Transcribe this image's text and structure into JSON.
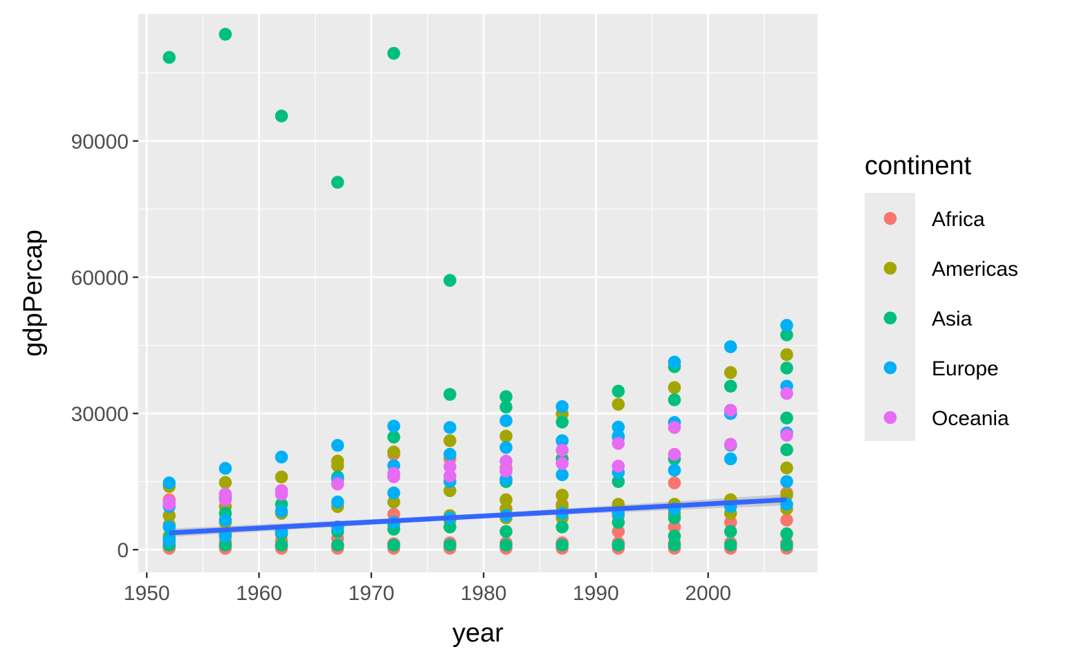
{
  "chart_data": {
    "type": "scatter",
    "title": "",
    "xlabel": "year",
    "ylabel": "gdpPercap",
    "xlim": [
      1949.25,
      2009.75
    ],
    "ylim": [
      -5000,
      118000
    ],
    "x_ticks": [
      1950,
      1960,
      1970,
      1980,
      1990,
      2000
    ],
    "x_tick_labels": [
      "1950",
      "1960",
      "1970",
      "1980",
      "1990",
      "2000"
    ],
    "y_ticks": [
      0,
      30000,
      60000,
      90000
    ],
    "y_tick_labels": [
      "0",
      "30000",
      "60000",
      "90000"
    ],
    "grid": true,
    "legend": {
      "title": "continent",
      "position": "right"
    },
    "series": [
      {
        "name": "Africa",
        "color": "#F8766D",
        "points": [
          [
            1952,
            300
          ],
          [
            1952,
            800
          ],
          [
            1952,
            1500
          ],
          [
            1952,
            11000
          ],
          [
            1957,
            300
          ],
          [
            1957,
            900
          ],
          [
            1957,
            1800
          ],
          [
            1957,
            12000
          ],
          [
            1962,
            300
          ],
          [
            1962,
            900
          ],
          [
            1962,
            2000
          ],
          [
            1967,
            300
          ],
          [
            1967,
            1000
          ],
          [
            1967,
            2500
          ],
          [
            1972,
            300
          ],
          [
            1972,
            1300
          ],
          [
            1972,
            7800
          ],
          [
            1972,
            21000
          ],
          [
            1977,
            300
          ],
          [
            1977,
            1500
          ],
          [
            1977,
            20000
          ],
          [
            1982,
            300
          ],
          [
            1982,
            1500
          ],
          [
            1982,
            18000
          ],
          [
            1987,
            300
          ],
          [
            1987,
            1500
          ],
          [
            1987,
            10000
          ],
          [
            1992,
            300
          ],
          [
            1992,
            1500
          ],
          [
            1992,
            4000
          ],
          [
            1997,
            300
          ],
          [
            1997,
            1500
          ],
          [
            1997,
            5000
          ],
          [
            1997,
            14700
          ],
          [
            2002,
            300
          ],
          [
            2002,
            1500
          ],
          [
            2002,
            6000
          ],
          [
            2007,
            300
          ],
          [
            2007,
            1500
          ],
          [
            2007,
            6500
          ],
          [
            2007,
            12500
          ]
        ]
      },
      {
        "name": "Americas",
        "color": "#A3A500",
        "points": [
          [
            1952,
            3000
          ],
          [
            1952,
            5500
          ],
          [
            1952,
            7500
          ],
          [
            1952,
            13900
          ],
          [
            1957,
            3500
          ],
          [
            1957,
            6000
          ],
          [
            1957,
            9500
          ],
          [
            1957,
            14800
          ],
          [
            1962,
            4000
          ],
          [
            1962,
            8000
          ],
          [
            1962,
            16000
          ],
          [
            1967,
            5000
          ],
          [
            1967,
            9500
          ],
          [
            1967,
            19500
          ],
          [
            1967,
            18500
          ],
          [
            1972,
            5500
          ],
          [
            1972,
            10500
          ],
          [
            1972,
            21500
          ],
          [
            1977,
            6500
          ],
          [
            1977,
            7500
          ],
          [
            1977,
            13000
          ],
          [
            1977,
            24000
          ],
          [
            1982,
            7000
          ],
          [
            1982,
            9000
          ],
          [
            1982,
            11000
          ],
          [
            1982,
            25000
          ],
          [
            1987,
            7000
          ],
          [
            1987,
            9500
          ],
          [
            1987,
            12000
          ],
          [
            1987,
            29900
          ],
          [
            1992,
            7500
          ],
          [
            1992,
            10000
          ],
          [
            1992,
            32000
          ],
          [
            1997,
            8000
          ],
          [
            1997,
            10000
          ],
          [
            1997,
            35700
          ],
          [
            2002,
            8000
          ],
          [
            2002,
            11000
          ],
          [
            2002,
            39000
          ],
          [
            2007,
            9000
          ],
          [
            2007,
            12000
          ],
          [
            2007,
            18000
          ],
          [
            2007,
            42950
          ]
        ]
      },
      {
        "name": "Asia",
        "color": "#00BF7D",
        "points": [
          [
            1952,
            108400
          ],
          [
            1952,
            1000
          ],
          [
            1952,
            2500
          ],
          [
            1957,
            113500
          ],
          [
            1957,
            1000
          ],
          [
            1957,
            3000
          ],
          [
            1957,
            8000
          ],
          [
            1962,
            95500
          ],
          [
            1962,
            1000
          ],
          [
            1962,
            3500
          ],
          [
            1962,
            10000
          ],
          [
            1967,
            80900
          ],
          [
            1967,
            1000
          ],
          [
            1967,
            4000
          ],
          [
            1967,
            16000
          ],
          [
            1972,
            109300
          ],
          [
            1972,
            1000
          ],
          [
            1972,
            4500
          ],
          [
            1972,
            24800
          ],
          [
            1977,
            59300
          ],
          [
            1977,
            34200
          ],
          [
            1977,
            1000
          ],
          [
            1977,
            5000
          ],
          [
            1982,
            33700
          ],
          [
            1982,
            31400
          ],
          [
            1982,
            1000
          ],
          [
            1982,
            4000
          ],
          [
            1982,
            15000
          ],
          [
            1987,
            28100
          ],
          [
            1987,
            1000
          ],
          [
            1987,
            5000
          ],
          [
            1987,
            20000
          ],
          [
            1992,
            34900
          ],
          [
            1992,
            24800
          ],
          [
            1992,
            1000
          ],
          [
            1992,
            6000
          ],
          [
            1992,
            15000
          ],
          [
            1997,
            40300
          ],
          [
            1997,
            33000
          ],
          [
            1997,
            1000
          ],
          [
            1997,
            3000
          ],
          [
            1997,
            7000
          ],
          [
            1997,
            20000
          ],
          [
            2002,
            36000
          ],
          [
            2002,
            30000
          ],
          [
            2002,
            1000
          ],
          [
            2002,
            4000
          ],
          [
            2002,
            23000
          ],
          [
            2007,
            47300
          ],
          [
            2007,
            40000
          ],
          [
            2007,
            29000
          ],
          [
            2007,
            1000
          ],
          [
            2007,
            3500
          ],
          [
            2007,
            22000
          ]
        ]
      },
      {
        "name": "Europe",
        "color": "#00B0F6",
        "points": [
          [
            1952,
            14700
          ],
          [
            1952,
            2000
          ],
          [
            1952,
            5000
          ],
          [
            1952,
            9500
          ],
          [
            1957,
            17900
          ],
          [
            1957,
            3000
          ],
          [
            1957,
            6500
          ],
          [
            1957,
            11500
          ],
          [
            1962,
            20400
          ],
          [
            1962,
            4000
          ],
          [
            1962,
            8500
          ],
          [
            1962,
            13000
          ],
          [
            1967,
            22970
          ],
          [
            1967,
            5000
          ],
          [
            1967,
            10500
          ],
          [
            1967,
            15500
          ],
          [
            1972,
            27200
          ],
          [
            1972,
            6000
          ],
          [
            1972,
            12500
          ],
          [
            1972,
            18500
          ],
          [
            1977,
            26900
          ],
          [
            1977,
            7000
          ],
          [
            1977,
            15000
          ],
          [
            1977,
            21000
          ],
          [
            1982,
            28400
          ],
          [
            1982,
            7500
          ],
          [
            1982,
            15500
          ],
          [
            1982,
            22500
          ],
          [
            1987,
            31500
          ],
          [
            1987,
            8000
          ],
          [
            1987,
            16500
          ],
          [
            1987,
            24000
          ],
          [
            1992,
            27000
          ],
          [
            1992,
            8000
          ],
          [
            1992,
            17000
          ],
          [
            1992,
            25000
          ],
          [
            1997,
            41300
          ],
          [
            1997,
            9000
          ],
          [
            1997,
            17500
          ],
          [
            1997,
            28000
          ],
          [
            2002,
            44700
          ],
          [
            2002,
            9500
          ],
          [
            2002,
            20000
          ],
          [
            2002,
            30000
          ],
          [
            2007,
            49400
          ],
          [
            2007,
            10000
          ],
          [
            2007,
            15000
          ],
          [
            2007,
            25700
          ],
          [
            2007,
            36000
          ]
        ]
      },
      {
        "name": "Oceania",
        "color": "#E76BF3",
        "points": [
          [
            1952,
            10040
          ],
          [
            1952,
            10560
          ],
          [
            1957,
            10950
          ],
          [
            1957,
            12250
          ],
          [
            1962,
            12220
          ],
          [
            1962,
            13000
          ],
          [
            1967,
            14450
          ],
          [
            1967,
            14500
          ],
          [
            1972,
            16050
          ],
          [
            1972,
            16800
          ],
          [
            1977,
            16200
          ],
          [
            1977,
            18300
          ],
          [
            1982,
            17300
          ],
          [
            1982,
            19500
          ],
          [
            1987,
            19000
          ],
          [
            1987,
            21900
          ],
          [
            1992,
            18400
          ],
          [
            1992,
            23400
          ],
          [
            1997,
            21000
          ],
          [
            1997,
            26900
          ],
          [
            2002,
            23200
          ],
          [
            2002,
            30700
          ],
          [
            2007,
            25200
          ],
          [
            2007,
            34400
          ]
        ]
      }
    ],
    "trend": {
      "method": "lm",
      "color": "#3366FF",
      "x": [
        1952,
        2007
      ],
      "y": [
        3700,
        11000
      ]
    }
  }
}
